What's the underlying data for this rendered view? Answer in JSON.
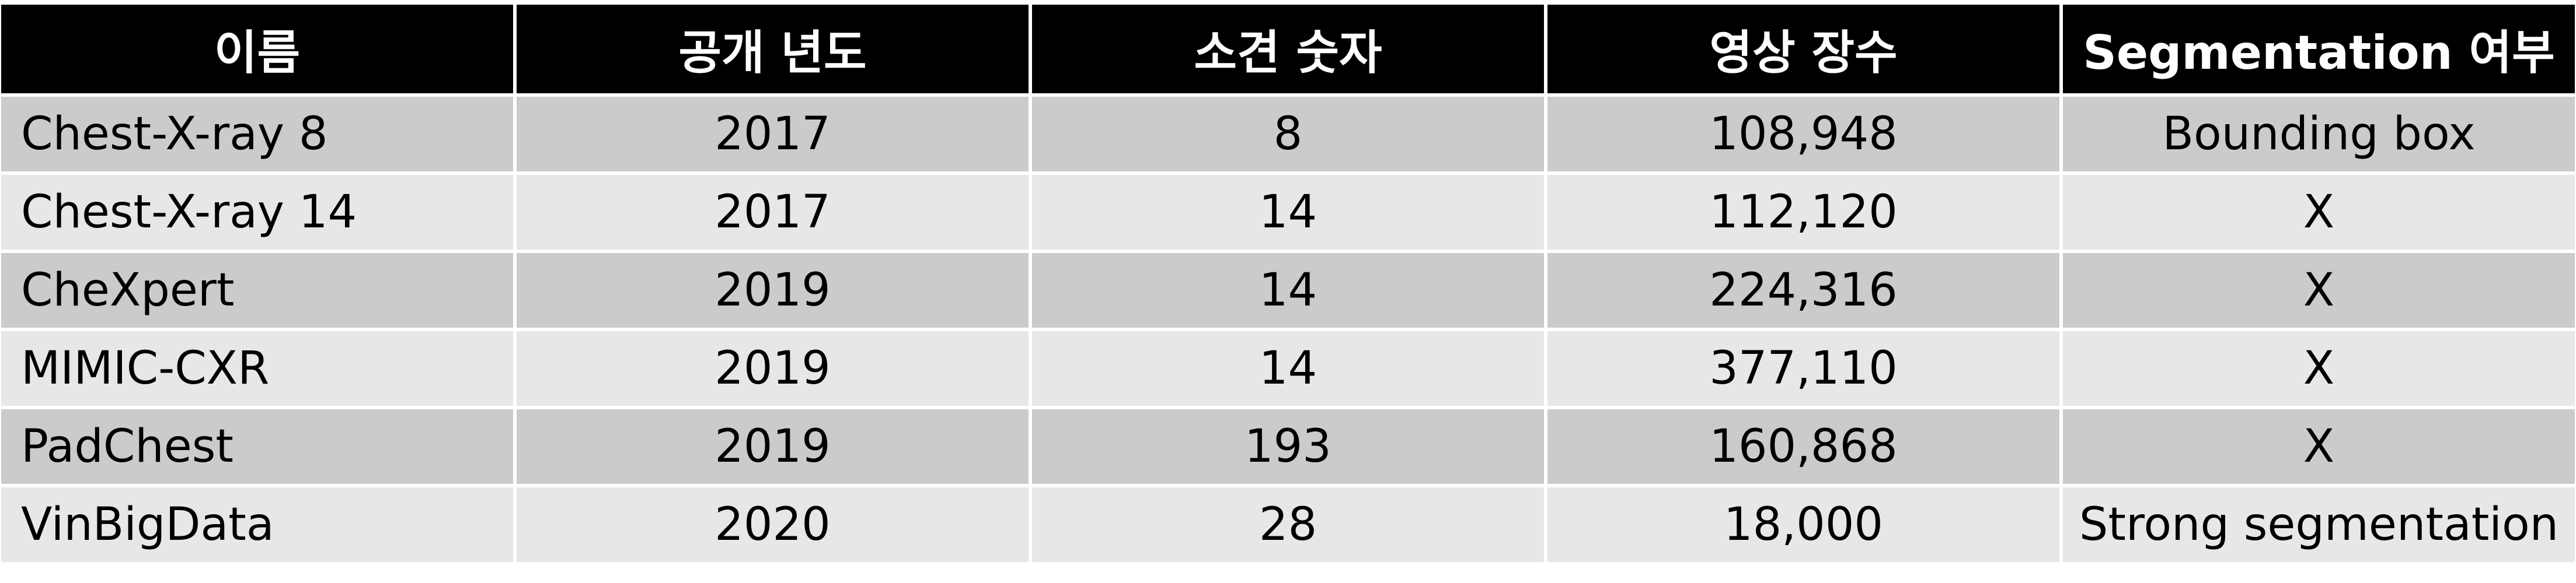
{
  "table": {
    "headers": [
      "이름",
      "공개 년도",
      "소견 숫자",
      "영상 장수",
      "Segmentation 여부"
    ],
    "rows": [
      [
        "Chest-X-ray 8",
        "2017",
        "8",
        "108,948",
        "Bounding box"
      ],
      [
        "Chest-X-ray 14",
        "2017",
        "14",
        "112,120",
        "X"
      ],
      [
        "CheXpert",
        "2019",
        "14",
        "224,316",
        "X"
      ],
      [
        "MIMIC-CXR",
        "2019",
        "14",
        "377,110",
        "X"
      ],
      [
        "PadChest",
        "2019",
        "193",
        "160,868",
        "X"
      ],
      [
        "VinBigData",
        "2020",
        "28",
        "18,000",
        "Strong segmentation"
      ]
    ]
  },
  "colors": {
    "header_bg": "#000000",
    "header_text": "#ffffff",
    "row_odd_bg": "#cbcbcb",
    "row_even_bg": "#e7e7e7"
  }
}
